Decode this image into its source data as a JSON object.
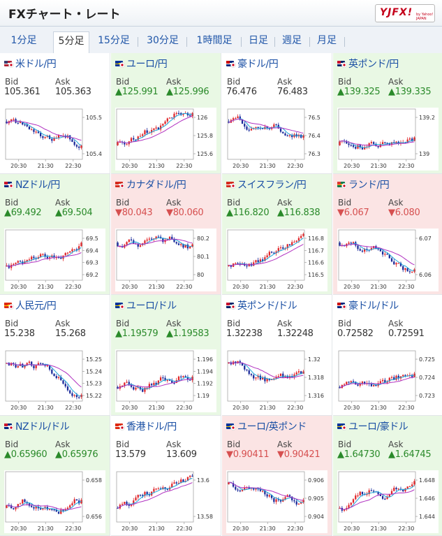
{
  "header": {
    "title": "FXチャート・レート",
    "logo_text": "YJFX!",
    "logo_sub": "by Yahoo! JAPAN"
  },
  "tabs": [
    "1分足",
    "5分足",
    "15分足",
    "30分足",
    "1時間足",
    "日足",
    "週足",
    "月足"
  ],
  "active_tab": 1,
  "labels": {
    "bid": "Bid",
    "ask": "Ask"
  },
  "colors": {
    "up_bg": "#e9f8e4",
    "down_bg": "#fbe4e4",
    "up_text": "#2a8a2a",
    "down_text": "#d65050",
    "candle_up": "#e0262a",
    "candle_down": "#1a2a9a",
    "ma_short": "#1aa4d8",
    "ma_long": "#b030c0"
  },
  "pairs": [
    {
      "name": "米ドル/円",
      "flag": "us-jp-flag-icon",
      "trend": "neutral",
      "bid": "105.361",
      "ask": "105.363",
      "y_ticks": [
        "105.5",
        "105.4"
      ],
      "x_ticks": [
        "20:30",
        "21:30",
        "22:30"
      ]
    },
    {
      "name": "ユーロ/円",
      "flag": "eu-jp-flag-icon",
      "trend": "up",
      "bid": "▲125.991",
      "ask": "▲125.996",
      "y_ticks": [
        "126",
        "125.8",
        "125.6"
      ],
      "x_ticks": [
        "20:30",
        "21:30",
        "22:30"
      ]
    },
    {
      "name": "豪ドル/円",
      "flag": "au-jp-flag-icon",
      "trend": "neutral",
      "bid": "76.476",
      "ask": "76.483",
      "y_ticks": [
        "76.5",
        "76.4",
        "76.3"
      ],
      "x_ticks": [
        "20:30",
        "21:30",
        "22:30"
      ]
    },
    {
      "name": "英ポンド/円",
      "flag": "gb-jp-flag-icon",
      "trend": "up",
      "bid": "▲139.325",
      "ask": "▲139.335",
      "y_ticks": [
        "139.2",
        "139"
      ],
      "x_ticks": [
        "20:30",
        "21:30",
        "22:30"
      ]
    },
    {
      "name": "NZドル/円",
      "flag": "nz-jp-flag-icon",
      "trend": "up",
      "bid": "▲69.492",
      "ask": "▲69.504",
      "y_ticks": [
        "69.5",
        "69.4",
        "69.3",
        "69.2"
      ],
      "x_ticks": [
        "20:30",
        "21:30",
        "22:30"
      ]
    },
    {
      "name": "カナダドル/円",
      "flag": "ca-jp-flag-icon",
      "trend": "down",
      "bid": "▼80.043",
      "ask": "▼80.060",
      "y_ticks": [
        "80.2",
        "80.1",
        "80"
      ],
      "x_ticks": [
        "20:30",
        "21:30",
        "22:30"
      ]
    },
    {
      "name": "スイスフラン/円",
      "flag": "ch-jp-flag-icon",
      "trend": "up",
      "bid": "▲116.820",
      "ask": "▲116.838",
      "y_ticks": [
        "116.8",
        "116.7",
        "116.6",
        "116.5"
      ],
      "x_ticks": [
        "20:30",
        "21:30",
        "22:30"
      ]
    },
    {
      "name": "ランド/円",
      "flag": "za-jp-flag-icon",
      "trend": "down",
      "bid": "▼6.067",
      "ask": "▼6.080",
      "y_ticks": [
        "6.07",
        "6.06"
      ],
      "x_ticks": [
        "20:30",
        "21:30",
        "22:30"
      ]
    },
    {
      "name": "人民元/円",
      "flag": "cn-jp-flag-icon",
      "trend": "neutral",
      "bid": "15.238",
      "ask": "15.268",
      "y_ticks": [
        "15.25",
        "15.24",
        "15.23",
        "15.22"
      ],
      "x_ticks": [
        "20:30",
        "21:30",
        "22:30"
      ]
    },
    {
      "name": "ユーロ/ドル",
      "flag": "eu-us-flag-icon",
      "trend": "up",
      "bid": "▲1.19579",
      "ask": "▲1.19583",
      "y_ticks": [
        "1.196",
        "1.194",
        "1.192",
        "1.19"
      ],
      "x_ticks": [
        "20:30",
        "21:30",
        "22:30"
      ]
    },
    {
      "name": "英ポンド/ドル",
      "flag": "gb-us-flag-icon",
      "trend": "neutral",
      "bid": "1.32238",
      "ask": "1.32248",
      "y_ticks": [
        "1.32",
        "1.318",
        "1.316"
      ],
      "x_ticks": [
        "20:30",
        "21:30",
        "22:30"
      ]
    },
    {
      "name": "豪ドル/ドル",
      "flag": "au-us-flag-icon",
      "trend": "neutral",
      "bid": "0.72582",
      "ask": "0.72591",
      "y_ticks": [
        "0.725",
        "0.724",
        "0.723"
      ],
      "x_ticks": [
        "20:30",
        "21:30",
        "22:30"
      ]
    },
    {
      "name": "NZドル/ドル",
      "flag": "nz-us-flag-icon",
      "trend": "up",
      "bid": "▲0.65960",
      "ask": "▲0.65976",
      "y_ticks": [
        "0.658",
        "0.656"
      ],
      "x_ticks": [
        "20:30",
        "21:30",
        "22:30"
      ]
    },
    {
      "name": "香港ドル/円",
      "flag": "hk-jp-flag-icon",
      "trend": "neutral",
      "bid": "13.579",
      "ask": "13.609",
      "y_ticks": [
        "13.6",
        "13.58"
      ],
      "x_ticks": [
        "20:30",
        "21:30",
        "22:30"
      ]
    },
    {
      "name": "ユーロ/英ポンド",
      "flag": "eu-gb-flag-icon",
      "trend": "down",
      "bid": "▼0.90411",
      "ask": "▼0.90421",
      "y_ticks": [
        "0.906",
        "0.905",
        "0.904"
      ],
      "x_ticks": [
        "20:30",
        "21:30",
        "22:30"
      ]
    },
    {
      "name": "ユーロ/豪ドル",
      "flag": "eu-au-flag-icon",
      "trend": "up",
      "bid": "▲1.64730",
      "ask": "▲1.64745",
      "y_ticks": [
        "1.648",
        "1.646",
        "1.644"
      ],
      "x_ticks": [
        "20:30",
        "21:30",
        "22:30"
      ]
    }
  ]
}
